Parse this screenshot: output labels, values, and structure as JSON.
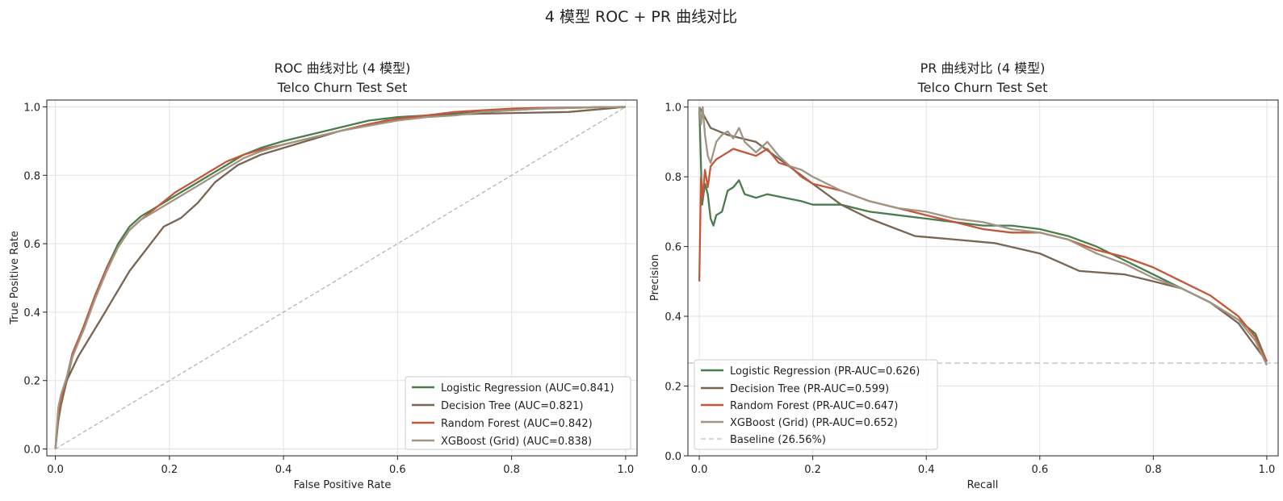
{
  "figure": {
    "suptitle": "4 模型 ROC + PR 曲线对比"
  },
  "colors": {
    "lr": "#4a7c4e",
    "dt": "#7a6452",
    "rf": "#c4573a",
    "xgb": "#a09583",
    "baseline": "#c8c8c8",
    "diag": "#b0b0b0",
    "grid": "#e3e3e3"
  },
  "chart_data": [
    {
      "type": "line",
      "title": "ROC 曲线对比 (4 模型)",
      "subtitle": "Telco Churn Test Set",
      "xlabel": "False Positive Rate",
      "ylabel": "True Positive Rate",
      "xlim": [
        -0.015,
        1.02
      ],
      "ylim": [
        -0.02,
        1.02
      ],
      "xticks": [
        "0.0",
        "0.2",
        "0.4",
        "0.6",
        "0.8",
        "1.0"
      ],
      "yticks": [
        "0.0",
        "0.2",
        "0.4",
        "0.6",
        "0.8",
        "1.0"
      ],
      "grid": true,
      "legend_position": "lower-right",
      "reference_line": {
        "x": [
          0,
          1
        ],
        "y": [
          0,
          1
        ],
        "style": "dashed"
      },
      "series": [
        {
          "key": "lr",
          "name": "Logistic Regression (AUC=0.841)",
          "x": [
            0,
            0.005,
            0.01,
            0.02,
            0.03,
            0.05,
            0.07,
            0.09,
            0.11,
            0.13,
            0.15,
            0.18,
            0.21,
            0.24,
            0.27,
            0.3,
            0.33,
            0.36,
            0.4,
            0.45,
            0.5,
            0.55,
            0.6,
            0.65,
            0.7,
            0.75,
            0.8,
            0.85,
            0.9,
            0.95,
            1.0
          ],
          "y": [
            0,
            0.08,
            0.13,
            0.2,
            0.27,
            0.36,
            0.45,
            0.53,
            0.6,
            0.65,
            0.68,
            0.71,
            0.74,
            0.77,
            0.8,
            0.83,
            0.86,
            0.88,
            0.9,
            0.92,
            0.94,
            0.96,
            0.97,
            0.975,
            0.98,
            0.985,
            0.99,
            0.995,
            0.997,
            0.999,
            1.0
          ]
        },
        {
          "key": "dt",
          "name": "Decision Tree (AUC=0.821)",
          "x": [
            0,
            0.005,
            0.01,
            0.02,
            0.04,
            0.08,
            0.13,
            0.19,
            0.22,
            0.25,
            0.28,
            0.32,
            0.36,
            0.42,
            0.5,
            0.58,
            0.66,
            0.74,
            0.9,
            1.0
          ],
          "y": [
            0,
            0.1,
            0.15,
            0.2,
            0.27,
            0.38,
            0.52,
            0.65,
            0.675,
            0.72,
            0.78,
            0.83,
            0.86,
            0.89,
            0.93,
            0.96,
            0.975,
            0.98,
            0.985,
            1.0
          ]
        },
        {
          "key": "rf",
          "name": "Random Forest (AUC=0.842)",
          "x": [
            0,
            0.005,
            0.01,
            0.02,
            0.03,
            0.05,
            0.07,
            0.09,
            0.11,
            0.13,
            0.15,
            0.18,
            0.21,
            0.24,
            0.27,
            0.3,
            0.33,
            0.36,
            0.4,
            0.45,
            0.5,
            0.55,
            0.6,
            0.65,
            0.7,
            0.75,
            0.8,
            0.85,
            0.9,
            0.95,
            1.0
          ],
          "y": [
            0,
            0.09,
            0.14,
            0.21,
            0.28,
            0.36,
            0.45,
            0.53,
            0.59,
            0.64,
            0.67,
            0.71,
            0.75,
            0.78,
            0.81,
            0.84,
            0.86,
            0.875,
            0.89,
            0.91,
            0.93,
            0.95,
            0.965,
            0.975,
            0.985,
            0.99,
            0.995,
            0.997,
            0.998,
            0.999,
            1.0
          ]
        },
        {
          "key": "xgb",
          "name": "XGBoost (Grid) (AUC=0.838)",
          "x": [
            0,
            0.005,
            0.01,
            0.02,
            0.03,
            0.05,
            0.07,
            0.09,
            0.11,
            0.13,
            0.15,
            0.18,
            0.21,
            0.24,
            0.27,
            0.3,
            0.33,
            0.36,
            0.4,
            0.45,
            0.5,
            0.55,
            0.6,
            0.65,
            0.7,
            0.75,
            0.8,
            0.85,
            0.9,
            0.95,
            1.0
          ],
          "y": [
            0,
            0.12,
            0.16,
            0.21,
            0.27,
            0.35,
            0.44,
            0.52,
            0.59,
            0.64,
            0.67,
            0.7,
            0.73,
            0.76,
            0.79,
            0.82,
            0.85,
            0.87,
            0.89,
            0.91,
            0.93,
            0.945,
            0.96,
            0.97,
            0.975,
            0.985,
            0.99,
            0.995,
            0.997,
            0.999,
            1.0
          ]
        }
      ]
    },
    {
      "type": "line",
      "title": "PR 曲线对比 (4 模型)",
      "subtitle": "Telco Churn Test Set",
      "xlabel": "Recall",
      "ylabel": "Precision",
      "xlim": [
        -0.02,
        1.02
      ],
      "ylim": [
        0.0,
        1.02
      ],
      "xticks": [
        "0.0",
        "0.2",
        "0.4",
        "0.6",
        "0.8",
        "1.0"
      ],
      "yticks": [
        "0.0",
        "0.2",
        "0.4",
        "0.6",
        "0.8",
        "1.0"
      ],
      "grid": true,
      "legend_position": "lower-left",
      "series": [
        {
          "key": "lr",
          "name": "Logistic Regression (PR-AUC=0.626)",
          "x": [
            0,
            0.005,
            0.01,
            0.015,
            0.02,
            0.025,
            0.03,
            0.04,
            0.05,
            0.06,
            0.07,
            0.08,
            0.1,
            0.12,
            0.15,
            0.18,
            0.2,
            0.25,
            0.3,
            0.35,
            0.4,
            0.45,
            0.5,
            0.55,
            0.6,
            0.65,
            0.7,
            0.75,
            0.8,
            0.85,
            0.9,
            0.95,
            0.98,
            1.0
          ],
          "y": [
            1.0,
            0.72,
            0.78,
            0.75,
            0.68,
            0.66,
            0.69,
            0.7,
            0.76,
            0.77,
            0.79,
            0.75,
            0.74,
            0.75,
            0.74,
            0.73,
            0.72,
            0.72,
            0.7,
            0.69,
            0.68,
            0.67,
            0.66,
            0.66,
            0.65,
            0.63,
            0.6,
            0.56,
            0.52,
            0.48,
            0.44,
            0.39,
            0.35,
            0.27
          ]
        },
        {
          "key": "dt",
          "name": "Decision Tree (PR-AUC=0.599)",
          "x": [
            0,
            0.02,
            0.05,
            0.1,
            0.15,
            0.2,
            0.25,
            0.3,
            0.38,
            0.45,
            0.52,
            0.6,
            0.67,
            0.75,
            0.8,
            0.85,
            0.9,
            0.95,
            1.0
          ],
          "y": [
            1.0,
            0.94,
            0.92,
            0.9,
            0.84,
            0.78,
            0.72,
            0.68,
            0.63,
            0.62,
            0.61,
            0.58,
            0.53,
            0.52,
            0.5,
            0.48,
            0.44,
            0.38,
            0.27
          ]
        },
        {
          "key": "rf",
          "name": "Random Forest (PR-AUC=0.647)",
          "x": [
            0,
            0.003,
            0.006,
            0.01,
            0.015,
            0.02,
            0.03,
            0.04,
            0.05,
            0.06,
            0.08,
            0.1,
            0.12,
            0.14,
            0.16,
            0.18,
            0.2,
            0.25,
            0.3,
            0.35,
            0.4,
            0.45,
            0.5,
            0.55,
            0.6,
            0.65,
            0.7,
            0.75,
            0.8,
            0.85,
            0.9,
            0.95,
            0.98,
            1.0
          ],
          "y": [
            0.5,
            0.8,
            0.74,
            0.82,
            0.77,
            0.83,
            0.85,
            0.86,
            0.87,
            0.88,
            0.87,
            0.86,
            0.88,
            0.84,
            0.83,
            0.8,
            0.78,
            0.76,
            0.73,
            0.71,
            0.69,
            0.67,
            0.65,
            0.64,
            0.64,
            0.62,
            0.59,
            0.57,
            0.54,
            0.5,
            0.46,
            0.4,
            0.34,
            0.27
          ]
        },
        {
          "key": "xgb",
          "name": "XGBoost (Grid) (PR-AUC=0.652)",
          "x": [
            0,
            0.003,
            0.006,
            0.01,
            0.015,
            0.02,
            0.03,
            0.04,
            0.05,
            0.06,
            0.07,
            0.08,
            0.1,
            0.12,
            0.14,
            0.16,
            0.18,
            0.2,
            0.25,
            0.3,
            0.35,
            0.4,
            0.45,
            0.5,
            0.55,
            0.6,
            0.65,
            0.7,
            0.75,
            0.8,
            0.85,
            0.9,
            0.95,
            0.98,
            1.0
          ],
          "y": [
            1.0,
            0.95,
            1.0,
            0.92,
            0.86,
            0.84,
            0.9,
            0.92,
            0.93,
            0.91,
            0.94,
            0.9,
            0.87,
            0.9,
            0.86,
            0.83,
            0.82,
            0.8,
            0.76,
            0.73,
            0.71,
            0.7,
            0.68,
            0.67,
            0.65,
            0.64,
            0.62,
            0.58,
            0.55,
            0.51,
            0.48,
            0.44,
            0.39,
            0.33,
            0.26
          ]
        }
      ],
      "baseline": {
        "name": "Baseline (26.56%)",
        "y": 0.2656
      }
    }
  ]
}
